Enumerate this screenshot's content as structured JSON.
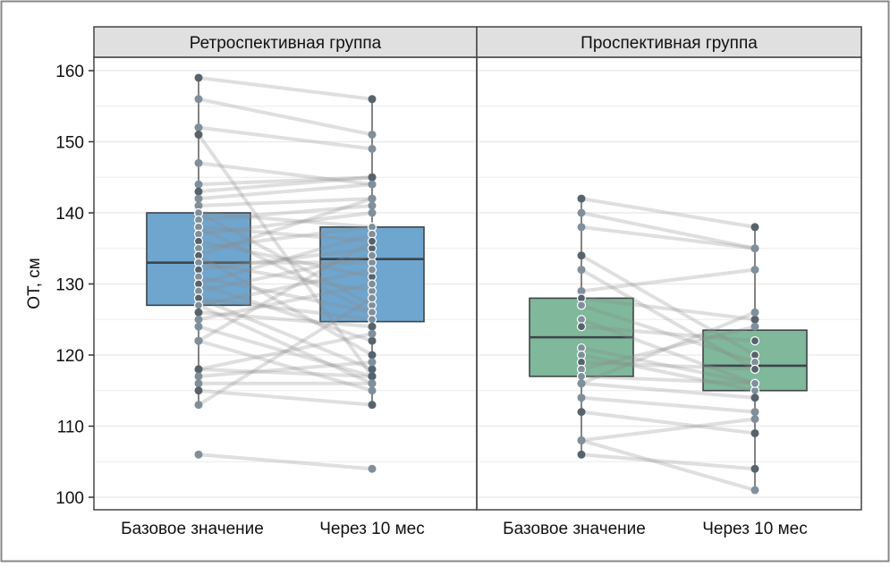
{
  "chart_data": {
    "type": "boxplot-paired",
    "ylabel": "ОТ, см",
    "ylim": [
      98,
      162
    ],
    "yticks": [
      100,
      110,
      120,
      130,
      140,
      150,
      160
    ],
    "categories": [
      "Базовое значение",
      "Через 10 мес"
    ],
    "grid": true,
    "panels": [
      {
        "title": "Ретроспективная группа",
        "color": "#6fa6cf",
        "boxes": [
          {
            "q1": 127,
            "median": 133,
            "q3": 140,
            "whisker_low": 113,
            "whisker_high": 159
          },
          {
            "q1": 124.7,
            "median": 133.5,
            "q3": 138,
            "whisker_low": 113,
            "whisker_high": 156
          }
        ],
        "pairs": [
          [
            159,
            156
          ],
          [
            156,
            151
          ],
          [
            152,
            149
          ],
          [
            151,
            117
          ],
          [
            147,
            144
          ],
          [
            144,
            145
          ],
          [
            143,
            145
          ],
          [
            142,
            144
          ],
          [
            141,
            142
          ],
          [
            140,
            138
          ],
          [
            140,
            127
          ],
          [
            139,
            141
          ],
          [
            138,
            136
          ],
          [
            138,
            126
          ],
          [
            137,
            140
          ],
          [
            136,
            131
          ],
          [
            135,
            138
          ],
          [
            134,
            142
          ],
          [
            134,
            120
          ],
          [
            133,
            133
          ],
          [
            133,
            129
          ],
          [
            132,
            135
          ],
          [
            131,
            126
          ],
          [
            130,
            137
          ],
          [
            130,
            122
          ],
          [
            129,
            134
          ],
          [
            128,
            125
          ],
          [
            128,
            118
          ],
          [
            127,
            132
          ],
          [
            127,
            116
          ],
          [
            126,
            124
          ],
          [
            125,
            130
          ],
          [
            124,
            117
          ],
          [
            122,
            136
          ],
          [
            122,
            115
          ],
          [
            118,
            123
          ],
          [
            118,
            117
          ],
          [
            117,
            119
          ],
          [
            116,
            116
          ],
          [
            115,
            113
          ],
          [
            113,
            128
          ],
          [
            106,
            104
          ]
        ]
      },
      {
        "title": "Проспективная группа",
        "color": "#7fb89a",
        "boxes": [
          {
            "q1": 117,
            "median": 122.5,
            "q3": 128,
            "whisker_low": 106,
            "whisker_high": 142
          },
          {
            "q1": 115,
            "median": 118.5,
            "q3": 123.5,
            "whisker_low": 101,
            "whisker_high": 138
          }
        ],
        "pairs": [
          [
            142,
            138
          ],
          [
            140,
            135
          ],
          [
            138,
            135
          ],
          [
            134,
            120
          ],
          [
            132,
            118
          ],
          [
            129,
            132
          ],
          [
            128,
            125
          ],
          [
            127,
            119
          ],
          [
            125,
            116
          ],
          [
            124,
            122
          ],
          [
            121,
            116
          ],
          [
            120,
            115
          ],
          [
            119,
            118
          ],
          [
            118,
            124
          ],
          [
            117,
            116
          ],
          [
            116,
            114
          ],
          [
            116,
            126
          ],
          [
            114,
            112
          ],
          [
            112,
            109
          ],
          [
            108,
            111
          ],
          [
            108,
            101
          ],
          [
            106,
            104
          ]
        ]
      }
    ]
  }
}
